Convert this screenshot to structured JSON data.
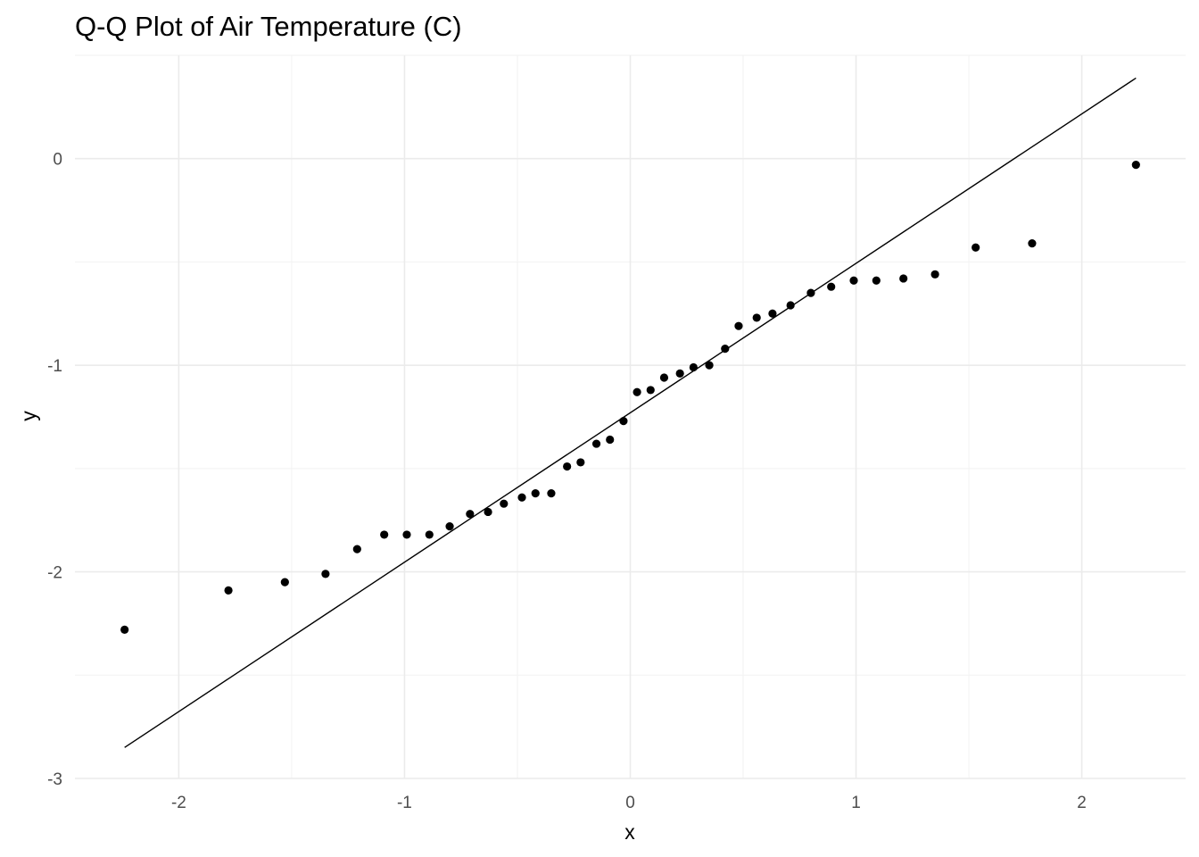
{
  "chart_data": {
    "type": "scatter",
    "title": "Q-Q Plot of Air Temperature (C)",
    "xlabel": "x",
    "ylabel": "y",
    "xlim": [
      -2.46,
      2.46
    ],
    "ylim": [
      -3.0,
      0.5
    ],
    "grid": true,
    "x_ticks": [
      -2,
      -1,
      0,
      1,
      2
    ],
    "x_tick_labels": [
      "-2",
      "-1",
      "0",
      "1",
      "2"
    ],
    "y_ticks": [
      -3,
      -2,
      -1,
      0
    ],
    "y_tick_labels": [
      "-3",
      "-2",
      "-1",
      "0"
    ],
    "series": [
      {
        "type": "scatter",
        "x": [
          -2.24,
          -1.78,
          -1.53,
          -1.35,
          -1.21,
          -1.09,
          -0.99,
          -0.89,
          -0.8,
          -0.71,
          -0.63,
          -0.56,
          -0.48,
          -0.42,
          -0.35,
          -0.28,
          -0.22,
          -0.15,
          -0.09,
          -0.03,
          0.03,
          0.09,
          0.15,
          0.22,
          0.28,
          0.35,
          0.42,
          0.48,
          0.56,
          0.63,
          0.71,
          0.8,
          0.89,
          0.99,
          1.09,
          1.21,
          1.35,
          1.53,
          1.78,
          2.24
        ],
        "y": [
          -2.28,
          -2.09,
          -2.05,
          -2.01,
          -1.89,
          -1.82,
          -1.82,
          -1.82,
          -1.78,
          -1.72,
          -1.71,
          -1.67,
          -1.64,
          -1.62,
          -1.62,
          -1.49,
          -1.47,
          -1.38,
          -1.36,
          -1.27,
          -1.13,
          -1.12,
          -1.06,
          -1.04,
          -1.01,
          -1.0,
          -0.92,
          -0.81,
          -0.77,
          -0.75,
          -0.71,
          -0.65,
          -0.62,
          -0.59,
          -0.59,
          -0.58,
          -0.56,
          -0.43,
          -0.41,
          -0.03
        ]
      },
      {
        "type": "line",
        "x": [
          -2.24,
          2.24
        ],
        "y": [
          -2.85,
          0.39
        ]
      }
    ]
  }
}
